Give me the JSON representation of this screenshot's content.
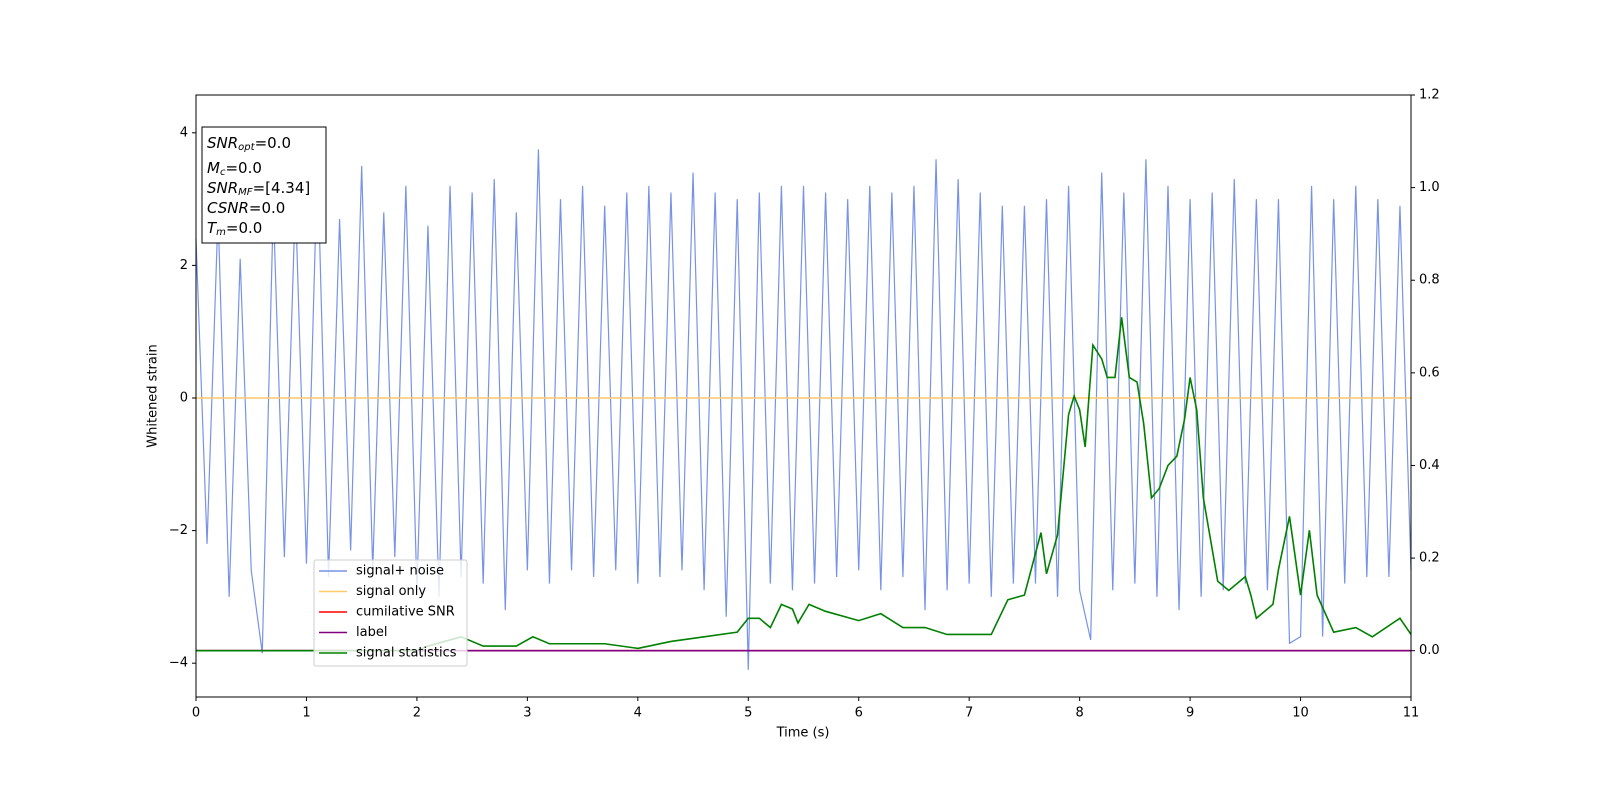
{
  "chart_data": {
    "type": "line",
    "xlabel": "Time (s)",
    "ylabel": "Whitened strain",
    "xlim": [
      0,
      11
    ],
    "xticks": [
      0,
      1,
      2,
      3,
      4,
      5,
      6,
      7,
      8,
      9,
      10,
      11
    ],
    "ylim": [
      -4.51,
      4.57
    ],
    "yticks": [
      {
        "value": -4,
        "label": "−4"
      },
      {
        "value": -2,
        "label": "−2"
      },
      0,
      2,
      4
    ],
    "y2lim": [
      -0.1,
      1.2
    ],
    "y2ticks": [
      {
        "value": 0,
        "label": "0.0"
      },
      {
        "value": 0.2,
        "label": "0.2"
      },
      {
        "value": 0.4,
        "label": "0.4"
      },
      {
        "value": 0.6,
        "label": "0.6"
      },
      {
        "value": 0.8,
        "label": "0.8"
      },
      {
        "value": 1,
        "label": "1.0"
      },
      {
        "value": 1.2,
        "label": "1.2"
      }
    ],
    "legend": "lower left",
    "annotation": [
      {
        "main": "SNR",
        "sub": "opt",
        "value": "=0.0"
      },
      {
        "main": "M",
        "sub": "c",
        "value": "=0.0"
      },
      {
        "main": "SNR",
        "sub": "MF",
        "value": "=[4.34]"
      },
      {
        "main": "CSNR",
        "value": "=0.0"
      },
      {
        "main": "T",
        "sub": "m",
        "value": "=0.0"
      }
    ],
    "series": [
      {
        "name": "signal+ noise",
        "color": "#7893e6",
        "x": [
          0,
          0.1,
          0.2,
          0.3,
          0.4,
          0.5,
          0.6,
          0.7,
          0.8,
          0.9,
          1,
          1.1,
          1.2,
          1.3,
          1.4,
          1.5,
          1.6,
          1.7,
          1.8,
          1.9,
          2,
          2.1,
          2.2,
          2.3,
          2.4,
          2.5,
          2.6,
          2.7,
          2.8,
          2.9,
          3,
          3.1,
          3.2,
          3.3,
          3.4,
          3.5,
          3.6,
          3.7,
          3.8,
          3.9,
          4,
          4.1,
          4.2,
          4.3,
          4.4,
          4.5,
          4.6,
          4.7,
          4.8,
          4.9,
          5,
          5.1,
          5.2,
          5.3,
          5.4,
          5.5,
          5.6,
          5.7,
          5.8,
          5.9,
          6,
          6.1,
          6.2,
          6.3,
          6.4,
          6.5,
          6.6,
          6.7,
          6.8,
          6.9,
          7,
          7.1,
          7.2,
          7.3,
          7.4,
          7.5,
          7.6,
          7.7,
          7.8,
          7.9,
          8,
          8.1,
          8.2,
          8.3,
          8.4,
          8.5,
          8.6,
          8.7,
          8.8,
          8.9,
          9,
          9.1,
          9.2,
          9.3,
          9.4,
          9.5,
          9.6,
          9.7,
          9.8,
          9.9,
          10,
          10.1,
          10.2,
          10.3,
          10.4,
          10.5,
          10.6,
          10.7,
          10.8,
          10.9,
          11
        ],
        "values": [
          2.4,
          -2.2,
          2.8,
          -3.0,
          2.1,
          -2.6,
          -3.85,
          2.9,
          -2.4,
          3.0,
          -2.5,
          3.6,
          -2.7,
          2.7,
          -2.3,
          3.5,
          -2.6,
          2.8,
          -2.4,
          3.2,
          -2.9,
          2.6,
          -3.0,
          3.2,
          -2.7,
          3.1,
          -2.8,
          3.3,
          -3.2,
          2.8,
          -2.6,
          3.75,
          -2.8,
          3.0,
          -2.6,
          3.2,
          -2.7,
          2.9,
          -2.6,
          3.1,
          -2.8,
          3.2,
          -2.7,
          3.1,
          -2.6,
          3.4,
          -2.9,
          3.1,
          -3.3,
          3.0,
          -4.1,
          3.1,
          -2.8,
          3.2,
          -2.9,
          3.2,
          -2.8,
          3.1,
          -2.7,
          3.0,
          -2.6,
          3.2,
          -2.9,
          3.1,
          -2.7,
          3.2,
          -3.2,
          3.6,
          -2.9,
          3.3,
          -2.8,
          3.1,
          -3.0,
          2.9,
          -2.8,
          2.9,
          -2.8,
          3.0,
          -3.0,
          3.2,
          -2.9,
          -3.65,
          3.4,
          -2.9,
          3.1,
          -2.8,
          3.6,
          -3.0,
          3.2,
          -3.2,
          3.0,
          -3.0,
          3.1,
          -2.9,
          3.3,
          -2.8,
          3.0,
          -2.9,
          3.0,
          -3.7,
          -3.6,
          3.2,
          -3.6,
          3.0,
          -2.8,
          3.2,
          -2.7,
          3.0,
          -2.7,
          2.9,
          -2.6
        ]
      },
      {
        "name": "signal only",
        "color": "#ffc966",
        "x": [
          0,
          11
        ],
        "values": [
          0,
          0
        ]
      },
      {
        "name": "cumilative SNR",
        "color": "#ff0000",
        "axis": "y2",
        "x": [
          0,
          11
        ],
        "values": [
          0,
          0
        ]
      },
      {
        "name": "label",
        "color": "#800080",
        "axis": "y2",
        "x": [
          0,
          11
        ],
        "values": [
          0,
          0
        ]
      },
      {
        "name": "signal statistics",
        "color": "#008000",
        "axis": "y2",
        "x": [
          0,
          2,
          2.1,
          2.4,
          2.6,
          2.9,
          3.05,
          3.2,
          3.4,
          3.7,
          4,
          4.3,
          4.6,
          4.9,
          5,
          5.1,
          5.2,
          5.3,
          5.4,
          5.45,
          5.55,
          5.7,
          6,
          6.2,
          6.4,
          6.6,
          6.8,
          7.2,
          7.35,
          7.5,
          7.65,
          7.7,
          7.8,
          7.9,
          7.95,
          8,
          8.05,
          8.12,
          8.2,
          8.25,
          8.32,
          8.38,
          8.45,
          8.52,
          8.58,
          8.65,
          8.72,
          8.8,
          8.88,
          8.95,
          9,
          9.06,
          9.12,
          9.25,
          9.35,
          9.5,
          9.55,
          9.6,
          9.75,
          9.8,
          9.9,
          10,
          10.08,
          10.15,
          10.3,
          10.5,
          10.65,
          10.9,
          11
        ],
        "values": [
          0,
          0,
          0.01,
          0.03,
          0.01,
          0.01,
          0.03,
          0.015,
          0.015,
          0.015,
          0.005,
          0.02,
          0.03,
          0.04,
          0.07,
          0.07,
          0.05,
          0.1,
          0.09,
          0.06,
          0.1,
          0.085,
          0.065,
          0.08,
          0.05,
          0.05,
          0.035,
          0.035,
          0.11,
          0.12,
          0.255,
          0.166,
          0.25,
          0.51,
          0.55,
          0.52,
          0.44,
          0.66,
          0.63,
          0.59,
          0.59,
          0.72,
          0.59,
          0.58,
          0.49,
          0.33,
          0.35,
          0.4,
          0.42,
          0.5,
          0.59,
          0.52,
          0.33,
          0.15,
          0.13,
          0.16,
          0.12,
          0.07,
          0.1,
          0.175,
          0.29,
          0.12,
          0.26,
          0.12,
          0.04,
          0.05,
          0.03,
          0.07,
          0.035
        ]
      }
    ]
  }
}
